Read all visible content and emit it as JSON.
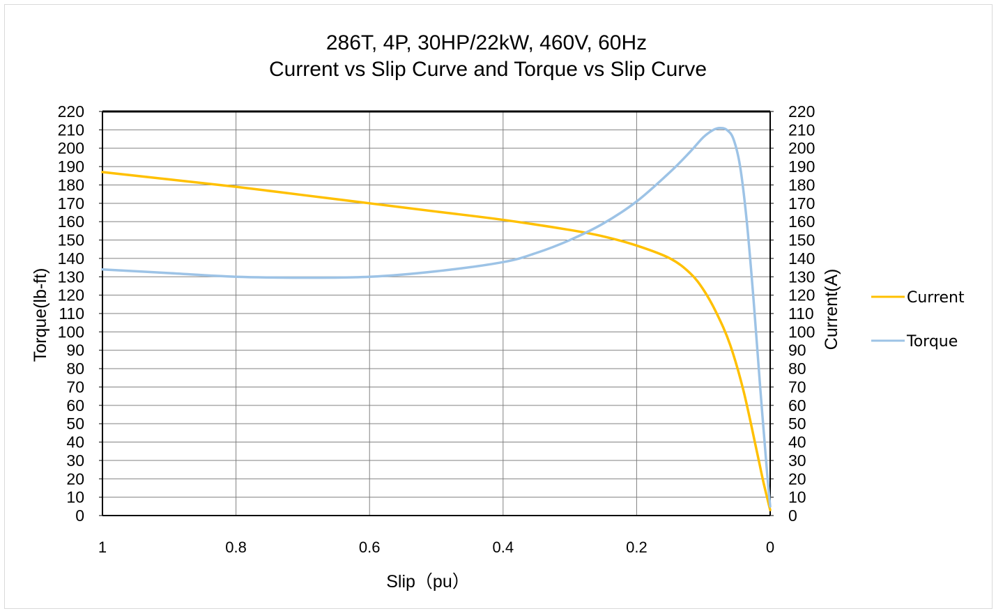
{
  "chart_data": {
    "type": "line",
    "title_line1": "286T,  4P, 30HP/22kW, 460V, 60Hz",
    "title_line2": "Current vs Slip Curve and Torque vs Slip Curve",
    "xlabel": "Slip（pu）",
    "ylabel_left": "Torque(lb-ft)",
    "ylabel_right": "Current(A)",
    "xlim": [
      1,
      0
    ],
    "ylim": [
      0,
      220
    ],
    "x_reversed": true,
    "x_ticks": [
      "1",
      "0.8",
      "0.6",
      "0.4",
      "0.2",
      "0"
    ],
    "y_ticks": [
      "0",
      "10",
      "20",
      "30",
      "40",
      "50",
      "60",
      "70",
      "80",
      "90",
      "100",
      "110",
      "120",
      "130",
      "140",
      "150",
      "160",
      "170",
      "180",
      "190",
      "200",
      "210",
      "220"
    ],
    "grid": true,
    "legend_position": "right",
    "series": [
      {
        "name": "Current",
        "color": "#FFC000",
        "axis": "right",
        "x": [
          1,
          0.9,
          0.8,
          0.7,
          0.6,
          0.5,
          0.4,
          0.3,
          0.25,
          0.2,
          0.15,
          0.12,
          0.1,
          0.08,
          0.06,
          0.04,
          0.02,
          0.01,
          0
        ],
        "y": [
          187,
          183,
          179,
          174.5,
          170,
          165.5,
          161,
          155.5,
          152,
          147,
          140,
          132,
          123,
          110,
          93,
          68,
          35,
          18,
          3
        ]
      },
      {
        "name": "Torque",
        "color": "#9DC3E6",
        "axis": "left",
        "x": [
          1,
          0.9,
          0.8,
          0.7,
          0.6,
          0.5,
          0.4,
          0.35,
          0.3,
          0.25,
          0.2,
          0.15,
          0.12,
          0.1,
          0.085,
          0.075,
          0.065,
          0.055,
          0.045,
          0.035,
          0.025,
          0.015,
          0.005,
          0
        ],
        "y": [
          134,
          132,
          130,
          129.5,
          130,
          133,
          138,
          143,
          150,
          159,
          171,
          187,
          198,
          206,
          210,
          211,
          210,
          205,
          190,
          160,
          118,
          70,
          25,
          5
        ]
      }
    ]
  }
}
